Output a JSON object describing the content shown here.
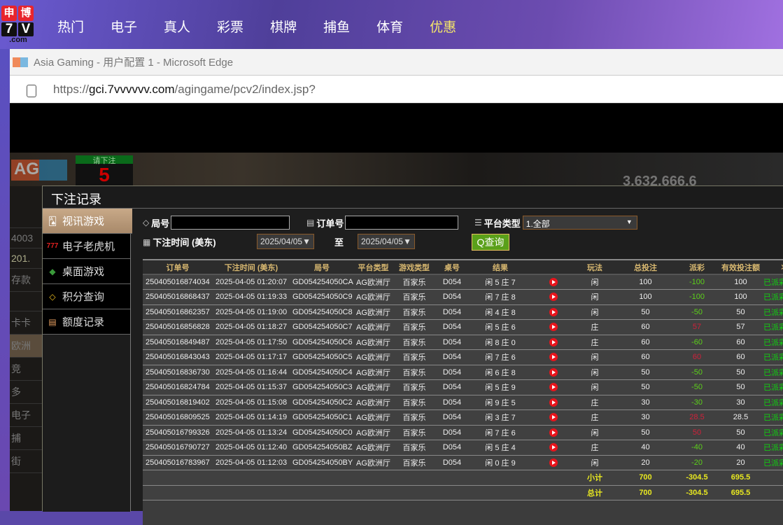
{
  "site": {
    "logo_chars": [
      "申",
      "博"
    ],
    "logo_num": [
      "7",
      "V"
    ],
    "logo_suffix": ".com",
    "nav": [
      "热门",
      "电子",
      "真人",
      "彩票",
      "棋牌",
      "捕鱼",
      "体育",
      "优惠"
    ],
    "nav_highlight_color": "#f5e66a"
  },
  "browser": {
    "title": "Asia Gaming - 用户配置 1 - Microsoft Edge",
    "url_prefix": "https://",
    "url_host": "gci.7vvvvvv.com",
    "url_path": "/agingame/pcv2/index.jsp?"
  },
  "game": {
    "timer_label": "请下注",
    "timer_value": "5",
    "bg_amount": "3,632,666.6",
    "ghost_items": [
      "4003",
      "201.",
      "存款",
      "卡卡",
      "欧洲",
      "竞",
      "多",
      "电子",
      "捕",
      "街"
    ]
  },
  "modal": {
    "title": "下注记录",
    "sidebar": [
      {
        "label": "视讯游戏",
        "icon": "cards-icon",
        "active": true
      },
      {
        "label": "电子老虎机",
        "icon": "slot-777-icon"
      },
      {
        "label": "桌面游戏",
        "icon": "chips-icon"
      },
      {
        "label": "积分查询",
        "icon": "diamond-icon"
      },
      {
        "label": "额度记录",
        "icon": "document-icon"
      }
    ],
    "filters": {
      "round_label": "局号",
      "round_value": "",
      "order_label": "订单号",
      "order_value": "",
      "platform_label": "平台类型",
      "platform_value": "1.全部",
      "time_label": "下注时间 (美东)",
      "date_from": "2025/04/05",
      "to_label": "至",
      "date_to": "2025/04/05",
      "query_label": "查询"
    },
    "table": {
      "headers": [
        "订单号",
        "下注时间 (美东)",
        "局号",
        "平台类型",
        "游戏类型",
        "桌号",
        "结果",
        "",
        "玩法",
        "总投注",
        "派彩",
        "有效投注额",
        "状态"
      ],
      "rows": [
        [
          "250405016874034",
          "2025-04-05 01:20:07",
          "GD054254050CA",
          "AG欧洲厅",
          "百家乐",
          "D054",
          "闲 5 庄 7",
          "闲",
          "100",
          "-100",
          "100",
          "已派彩"
        ],
        [
          "250405016868437",
          "2025-04-05 01:19:33",
          "GD054254050C9",
          "AG欧洲厅",
          "百家乐",
          "D054",
          "闲 7 庄 8",
          "闲",
          "100",
          "-100",
          "100",
          "已派彩"
        ],
        [
          "250405016862357",
          "2025-04-05 01:19:00",
          "GD054254050C8",
          "AG欧洲厅",
          "百家乐",
          "D054",
          "闲 4 庄 8",
          "闲",
          "50",
          "-50",
          "50",
          "已派彩"
        ],
        [
          "250405016856828",
          "2025-04-05 01:18:27",
          "GD054254050C7",
          "AG欧洲厅",
          "百家乐",
          "D054",
          "闲 5 庄 6",
          "庄",
          "60",
          "57",
          "57",
          "已派彩"
        ],
        [
          "250405016849487",
          "2025-04-05 01:17:50",
          "GD054254050C6",
          "AG欧洲厅",
          "百家乐",
          "D054",
          "闲 8 庄 0",
          "庄",
          "60",
          "-60",
          "60",
          "已派彩"
        ],
        [
          "250405016843043",
          "2025-04-05 01:17:17",
          "GD054254050C5",
          "AG欧洲厅",
          "百家乐",
          "D054",
          "闲 7 庄 6",
          "闲",
          "60",
          "60",
          "60",
          "已派彩"
        ],
        [
          "250405016836730",
          "2025-04-05 01:16:44",
          "GD054254050C4",
          "AG欧洲厅",
          "百家乐",
          "D054",
          "闲 6 庄 8",
          "闲",
          "50",
          "-50",
          "50",
          "已派彩"
        ],
        [
          "250405016824784",
          "2025-04-05 01:15:37",
          "GD054254050C3",
          "AG欧洲厅",
          "百家乐",
          "D054",
          "闲 5 庄 9",
          "闲",
          "50",
          "-50",
          "50",
          "已派彩"
        ],
        [
          "250405016819402",
          "2025-04-05 01:15:08",
          "GD054254050C2",
          "AG欧洲厅",
          "百家乐",
          "D054",
          "闲 9 庄 5",
          "庄",
          "30",
          "-30",
          "30",
          "已派彩"
        ],
        [
          "250405016809525",
          "2025-04-05 01:14:19",
          "GD054254050C1",
          "AG欧洲厅",
          "百家乐",
          "D054",
          "闲 3 庄 7",
          "庄",
          "30",
          "28.5",
          "28.5",
          "已派彩"
        ],
        [
          "250405016799326",
          "2025-04-05 01:13:24",
          "GD054254050C0",
          "AG欧洲厅",
          "百家乐",
          "D054",
          "闲 7 庄 6",
          "闲",
          "50",
          "50",
          "50",
          "已派彩"
        ],
        [
          "250405016790727",
          "2025-04-05 01:12:40",
          "GD054254050BZ",
          "AG欧洲厅",
          "百家乐",
          "D054",
          "闲 5 庄 4",
          "庄",
          "40",
          "-40",
          "40",
          "已派彩"
        ],
        [
          "250405016783967",
          "2025-04-05 01:12:03",
          "GD054254050BY",
          "AG欧洲厅",
          "百家乐",
          "D054",
          "闲 0 庄 9",
          "闲",
          "20",
          "-20",
          "20",
          "已派彩"
        ]
      ],
      "subtotal": {
        "label": "小计",
        "bet": "700",
        "payout": "-304.5",
        "valid": "695.5"
      },
      "total": {
        "label": "总计",
        "bet": "700",
        "payout": "-304.5",
        "valid": "695.5"
      }
    },
    "colors": {
      "header": "#d8b870",
      "loss": "#5cd01a",
      "win": "#d0203a",
      "status": "#10d010",
      "summary": "#e8e820",
      "query_button": "#5aa01a"
    }
  }
}
